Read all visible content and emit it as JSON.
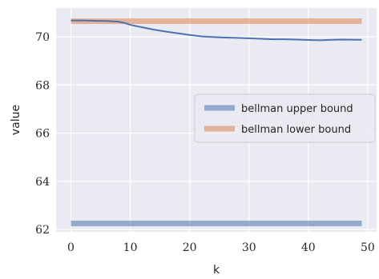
{
  "chart_data": {
    "type": "line",
    "title": "",
    "xlabel": "k",
    "ylabel": "value",
    "xlim": [
      -2.5,
      51.5
    ],
    "ylim": [
      61.9,
      71.2
    ],
    "grid": true,
    "legend_position": "center-right",
    "xticks": [
      0,
      10,
      20,
      30,
      40,
      50
    ],
    "yticks": [
      62,
      64,
      66,
      68,
      70
    ],
    "colors": {
      "background": "#eaeaf2",
      "grid": "#ffffff",
      "trace": "#4c72b0"
    },
    "series": [
      {
        "name": "bellman upper bound",
        "color": "#4c72b0",
        "opacity": 0.55,
        "width": 7,
        "x": [
          0,
          49
        ],
        "y": [
          62.25,
          62.25
        ]
      },
      {
        "name": "bellman lower bound",
        "color": "#dd8452",
        "opacity": 0.55,
        "width": 7,
        "x": [
          0,
          49
        ],
        "y": [
          70.65,
          70.65
        ]
      }
    ],
    "trace": {
      "x": [
        0,
        2,
        4,
        6,
        8,
        9,
        10,
        12,
        14,
        16,
        18,
        20,
        22,
        24,
        26,
        28,
        30,
        32,
        34,
        36,
        38,
        40,
        42,
        44,
        46,
        48,
        49
      ],
      "y": [
        70.68,
        70.68,
        70.67,
        70.66,
        70.63,
        70.58,
        70.5,
        70.4,
        70.3,
        70.22,
        70.15,
        70.08,
        70.02,
        69.99,
        69.97,
        69.96,
        69.94,
        69.92,
        69.9,
        69.9,
        69.89,
        69.87,
        69.86,
        69.88,
        69.89,
        69.88,
        69.88
      ]
    }
  }
}
